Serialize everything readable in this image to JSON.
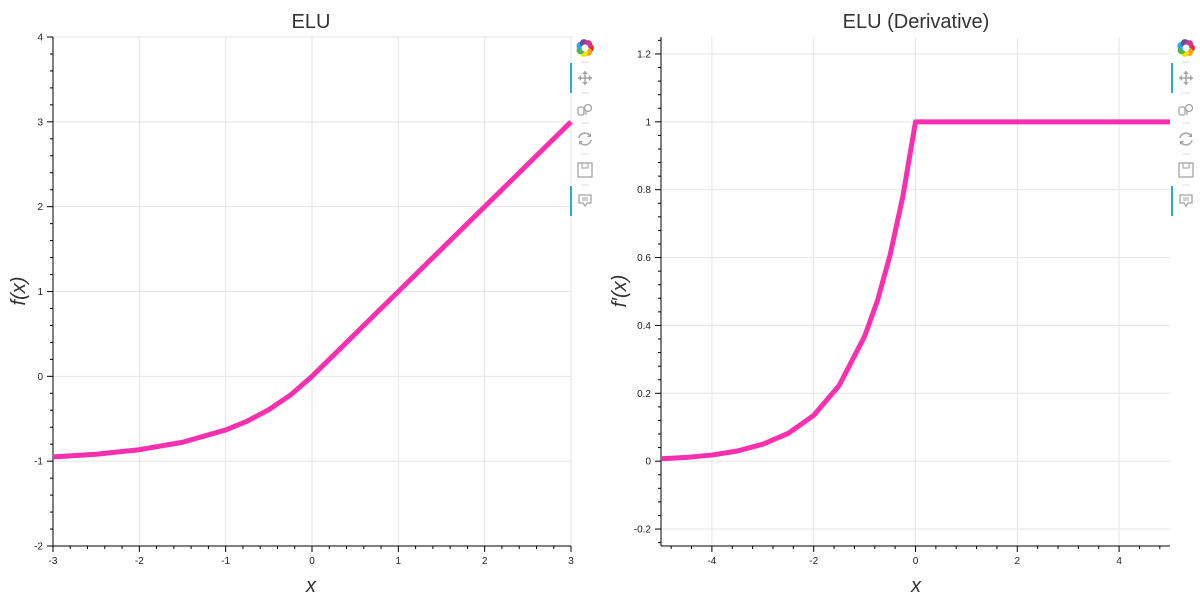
{
  "colors": {
    "series": "#f92fb0",
    "grid": "#e5e5e5",
    "axis": "#000000",
    "toolbar_icon": "#a5a5a5",
    "toolbar_active": "#26aae1"
  },
  "toolbar": {
    "tools": [
      {
        "name": "bokeh-logo-icon",
        "active": false
      },
      {
        "name": "pan-tool-icon",
        "active": true
      },
      {
        "name": "box-zoom-tool-icon",
        "active": false
      },
      {
        "name": "reset-tool-icon",
        "active": false
      },
      {
        "name": "save-tool-icon",
        "active": false
      },
      {
        "name": "hover-tool-icon",
        "active": true
      }
    ]
  },
  "chart_data": [
    {
      "type": "line",
      "title": "ELU",
      "xlabel": "x",
      "ylabel": "f(x)",
      "xlim": [
        -3,
        3
      ],
      "ylim": [
        -2,
        4
      ],
      "x_ticks": [
        -3,
        -2,
        -1,
        0,
        1,
        2,
        3
      ],
      "y_ticks": [
        -2,
        -1,
        0,
        1,
        2,
        3,
        4
      ],
      "x_tick_labels": [
        "-3",
        "-2",
        "-1",
        "0",
        "1",
        "2",
        "3"
      ],
      "y_tick_labels": [
        "-2",
        "-1",
        "0",
        "1",
        "2",
        "3",
        "4"
      ],
      "grid": true,
      "series": [
        {
          "x": [
            -3,
            -2.5,
            -2,
            -1.5,
            -1,
            -0.75,
            -0.5,
            -0.25,
            0,
            0.5,
            1,
            1.5,
            2,
            2.5,
            3
          ],
          "y": [
            -0.95,
            -0.918,
            -0.865,
            -0.777,
            -0.632,
            -0.528,
            -0.393,
            -0.221,
            0,
            0.5,
            1,
            1.5,
            2,
            2.5,
            3
          ]
        }
      ]
    },
    {
      "type": "line",
      "title": "ELU (Derivative)",
      "xlabel": "x",
      "ylabel": "f′(x)",
      "xlim": [
        -5,
        5
      ],
      "ylim": [
        -0.25,
        1.25
      ],
      "x_ticks": [
        -4,
        -2,
        0,
        2,
        4
      ],
      "y_ticks": [
        -0.2,
        0,
        0.2,
        0.4,
        0.6,
        0.8,
        1,
        1.2
      ],
      "x_tick_labels": [
        "-4",
        "-2",
        "0",
        "2",
        "4"
      ],
      "y_tick_labels": [
        "-0.2",
        "0",
        "0.2",
        "0.4",
        "0.6",
        "0.8",
        "1",
        "1.2"
      ],
      "grid": true,
      "series": [
        {
          "x": [
            -5,
            -4.5,
            -4,
            -3.5,
            -3,
            -2.5,
            -2,
            -1.5,
            -1,
            -0.75,
            -0.5,
            -0.25,
            0,
            1,
            2,
            3,
            4,
            5
          ],
          "y": [
            0.007,
            0.011,
            0.018,
            0.03,
            0.05,
            0.082,
            0.135,
            0.223,
            0.368,
            0.472,
            0.607,
            0.779,
            1,
            1,
            1,
            1,
            1,
            1
          ]
        }
      ]
    }
  ]
}
